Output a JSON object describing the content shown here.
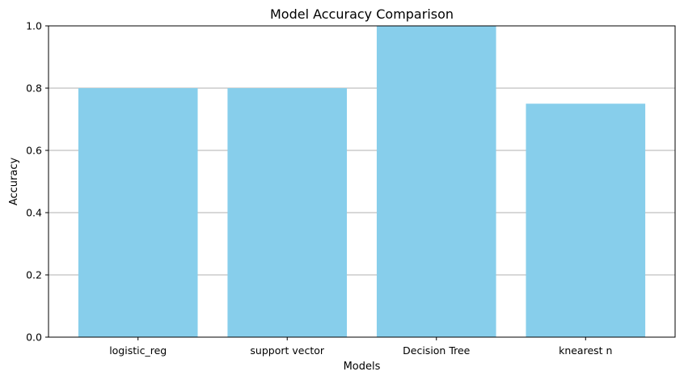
{
  "chart_data": {
    "type": "bar",
    "title": "Model Accuracy Comparison",
    "xlabel": "Models",
    "ylabel": "Accuracy",
    "categories": [
      "logistic_reg",
      "support vector",
      "Decision Tree",
      "knearest n"
    ],
    "values": [
      0.8,
      0.8,
      1.0,
      0.75
    ],
    "ylim": [
      0,
      1.0
    ],
    "yticks": [
      "0.0",
      "0.2",
      "0.4",
      "0.6",
      "0.8",
      "1.0"
    ],
    "grid": "y-axis on",
    "legend": "none",
    "colors": {
      "bar": "#87CEEB",
      "grid": "#b0b0b0",
      "axis": "#000000"
    }
  }
}
